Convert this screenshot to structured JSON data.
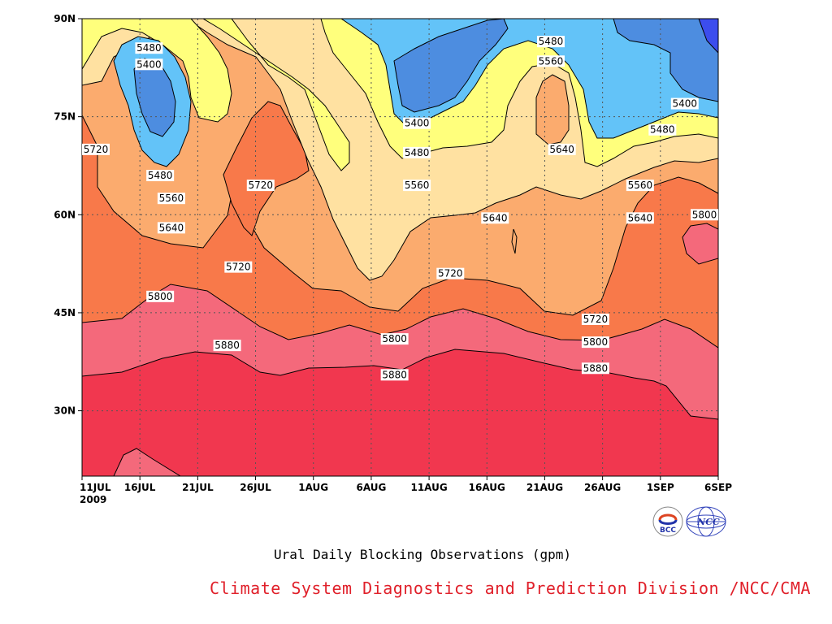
{
  "chart_data": {
    "type": "contour",
    "subtitle": "Ural Daily Blocking Observations (gpm)",
    "x_tick_labels": [
      "11JUL",
      "16JUL",
      "21JUL",
      "26JUL",
      "1AUG",
      "6AUG",
      "11AUG",
      "16AUG",
      "21AUG",
      "26AUG",
      "1SEP",
      "6SEP"
    ],
    "x_year_label": "2009",
    "y_tick_labels": [
      "30N",
      "45N",
      "60N",
      "75N",
      "90N"
    ],
    "y_ticks": [
      30,
      45,
      60,
      75,
      90
    ],
    "ylim": [
      20,
      90
    ],
    "x_range": [
      "2009-07-11",
      "2009-09-06"
    ],
    "contour_levels": [
      5400,
      5480,
      5560,
      5640,
      5720,
      5800,
      5880
    ],
    "fill_colors": [
      "#3c4dee",
      "#4d8de0",
      "#63c3f8",
      "#ffff7c",
      "#ffe1a1",
      "#fbab6e",
      "#f8794a",
      "#f4697b",
      "#f1374f"
    ],
    "contour_labels": [
      {
        "text": "5480",
        "date": "2009-07-17",
        "lat": 85.5
      },
      {
        "text": "5400",
        "date": "2009-07-17",
        "lat": 83
      },
      {
        "text": "5480",
        "date": "2009-07-18",
        "lat": 66
      },
      {
        "text": "5560",
        "date": "2009-07-19",
        "lat": 62.5
      },
      {
        "text": "5640",
        "date": "2009-07-19",
        "lat": 58
      },
      {
        "text": "5720",
        "date": "2009-07-11",
        "lat": 70
      },
      {
        "text": "5720",
        "date": "2009-07-27",
        "lat": 64.5
      },
      {
        "text": "5720",
        "date": "2009-07-25",
        "lat": 52
      },
      {
        "text": "5800",
        "date": "2009-07-18",
        "lat": 47.5
      },
      {
        "text": "5880",
        "date": "2009-07-24",
        "lat": 40
      },
      {
        "text": "5400",
        "date": "2009-08-10",
        "lat": 74
      },
      {
        "text": "5480",
        "date": "2009-08-10",
        "lat": 69.5
      },
      {
        "text": "5560",
        "date": "2009-08-10",
        "lat": 64.5
      },
      {
        "text": "5640",
        "date": "2009-08-17",
        "lat": 59.5
      },
      {
        "text": "5720",
        "date": "2009-08-13",
        "lat": 51
      },
      {
        "text": "5800",
        "date": "2009-08-08",
        "lat": 41
      },
      {
        "text": "5880",
        "date": "2009-08-08",
        "lat": 35.5
      },
      {
        "text": "5480",
        "date": "2009-08-22",
        "lat": 86.5
      },
      {
        "text": "5560",
        "date": "2009-08-22",
        "lat": 83.5
      },
      {
        "text": "5640",
        "date": "2009-08-23",
        "lat": 70
      },
      {
        "text": "5720",
        "date": "2009-08-26",
        "lat": 44
      },
      {
        "text": "5800",
        "date": "2009-08-26",
        "lat": 40.5
      },
      {
        "text": "5880",
        "date": "2009-08-26",
        "lat": 36.5
      },
      {
        "text": "5560",
        "date": "2009-08-30",
        "lat": 64.5
      },
      {
        "text": "5640",
        "date": "2009-08-30",
        "lat": 59.5
      },
      {
        "text": "5480",
        "date": "2009-09-01",
        "lat": 73
      },
      {
        "text": "5400",
        "date": "2009-09-03",
        "lat": 77
      },
      {
        "text": "5800",
        "date": "2009-09-05",
        "lat": 60
      }
    ]
  },
  "logos": {
    "left": "BCC",
    "right": "NCC"
  },
  "credit": "Climate System Diagnostics and Prediction Division /NCC/CMA"
}
